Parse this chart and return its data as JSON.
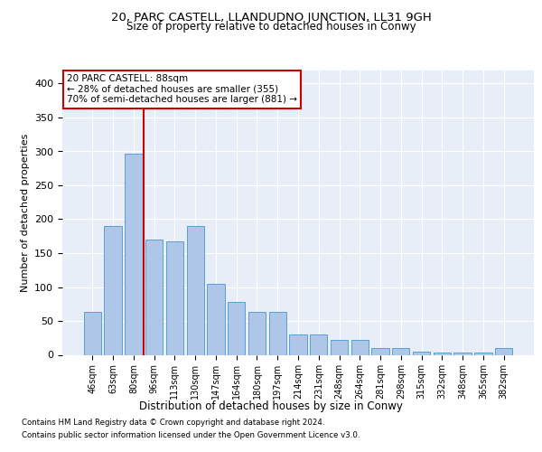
{
  "title1": "20, PARC CASTELL, LLANDUDNO JUNCTION, LL31 9GH",
  "title2": "Size of property relative to detached houses in Conwy",
  "xlabel": "Distribution of detached houses by size in Conwy",
  "ylabel": "Number of detached properties",
  "categories": [
    "46sqm",
    "63sqm",
    "80sqm",
    "96sqm",
    "113sqm",
    "130sqm",
    "147sqm",
    "164sqm",
    "180sqm",
    "197sqm",
    "214sqm",
    "231sqm",
    "248sqm",
    "264sqm",
    "281sqm",
    "298sqm",
    "315sqm",
    "332sqm",
    "348sqm",
    "365sqm",
    "382sqm"
  ],
  "values": [
    63,
    190,
    297,
    170,
    168,
    190,
    105,
    78,
    63,
    63,
    30,
    30,
    22,
    22,
    10,
    10,
    5,
    3,
    3,
    3,
    10
  ],
  "bar_color": "#aec6e8",
  "bar_edge_color": "#5a9fd4",
  "marker_bar_index": 2,
  "marker_line_color": "#cc0000",
  "annotation_line1": "20 PARC CASTELL: 88sqm",
  "annotation_line2": "← 28% of detached houses are smaller (355)",
  "annotation_line3": "70% of semi-detached houses are larger (881) →",
  "ylim": [
    0,
    420
  ],
  "yticks": [
    0,
    50,
    100,
    150,
    200,
    250,
    300,
    350,
    400
  ],
  "background_color": "#e8eef7",
  "footer1": "Contains HM Land Registry data © Crown copyright and database right 2024.",
  "footer2": "Contains public sector information licensed under the Open Government Licence v3.0."
}
